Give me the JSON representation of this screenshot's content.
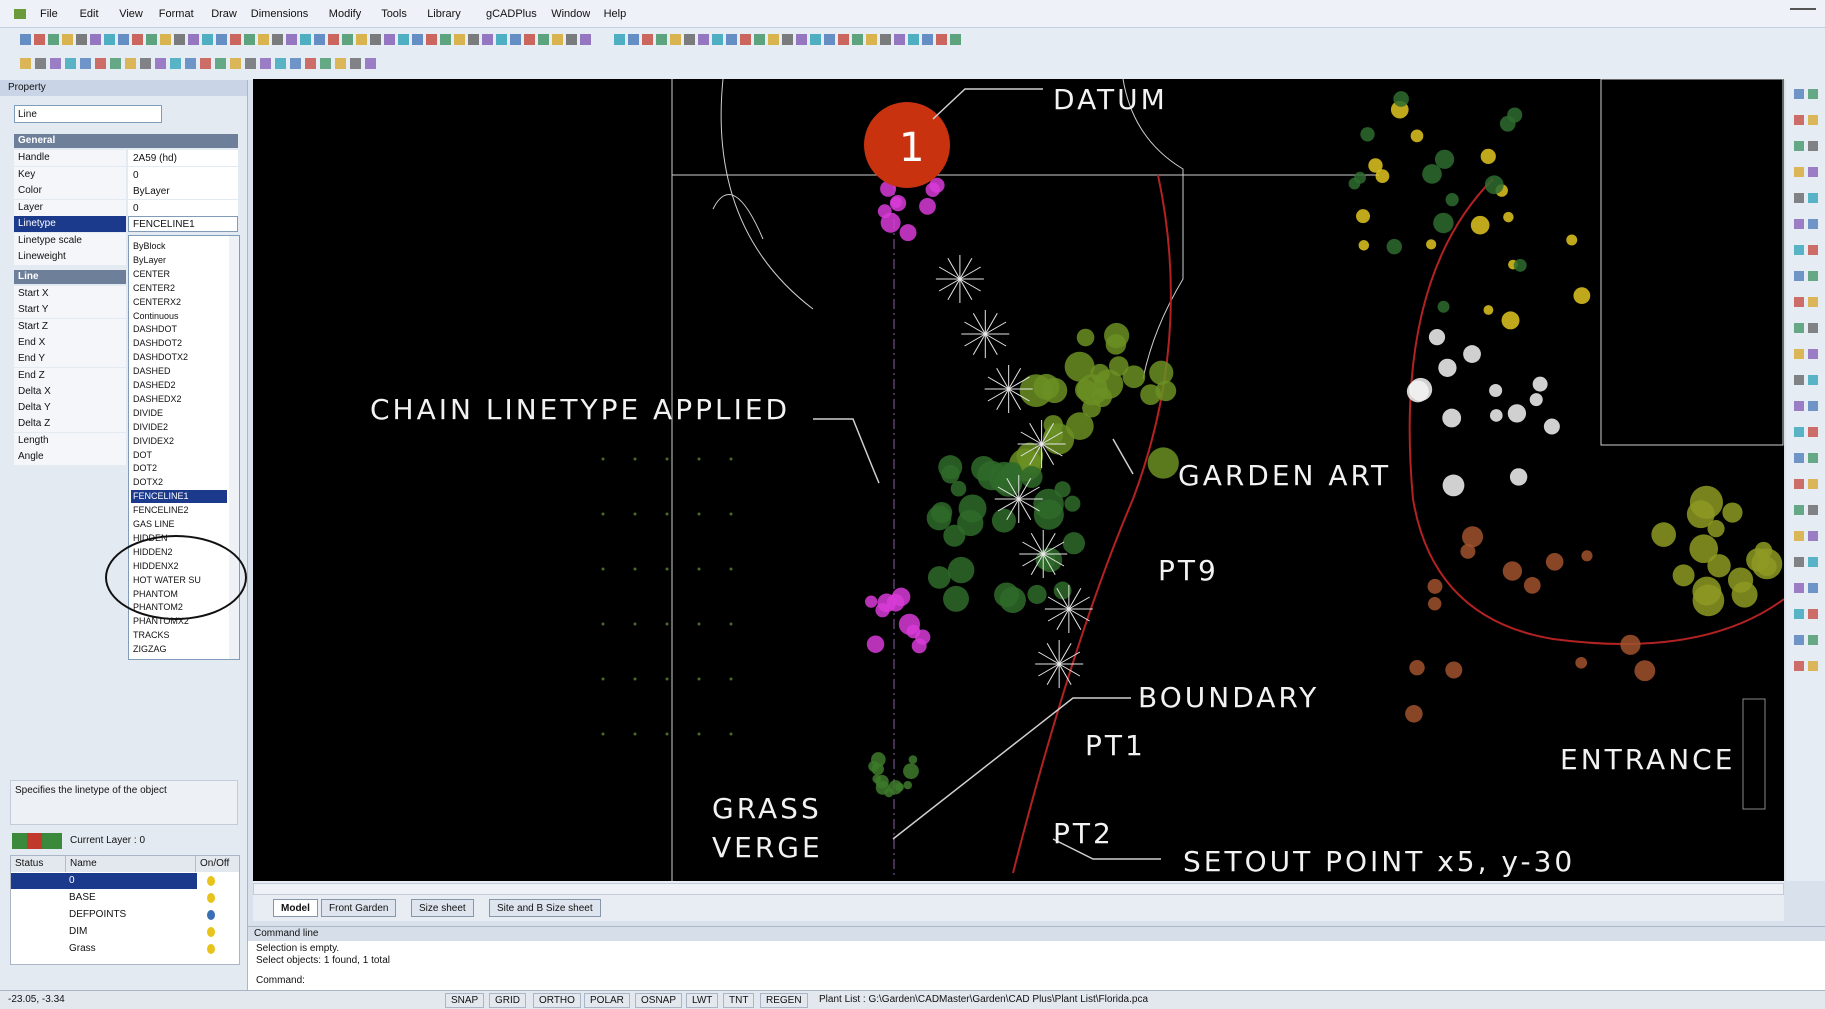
{
  "menu": [
    "File",
    "Edit",
    "View",
    "Format",
    "Draw",
    "Dimensions",
    "Modify",
    "Tools",
    "Library",
    "gCADPlus",
    "Window",
    "Help"
  ],
  "property_panel": {
    "title": "Property",
    "object_type": "Line",
    "general_header": "General",
    "general_rows": [
      {
        "label": "Handle",
        "value": "2A59 (hd)"
      },
      {
        "label": "Key",
        "value": "0"
      },
      {
        "label": "Color",
        "value": "ByLayer"
      },
      {
        "label": "Layer",
        "value": "0"
      },
      {
        "label": "Linetype",
        "value": "FENCELINE1"
      },
      {
        "label": "Linetype scale"
      },
      {
        "label": "Lineweight"
      }
    ],
    "line_header": "Line",
    "line_rows": [
      "Start X",
      "Start Y",
      "Start Z",
      "End X",
      "End Y",
      "End Z",
      "Delta X",
      "Delta Y",
      "Delta Z",
      "Length",
      "Angle"
    ],
    "linetype_options": [
      {
        "label": "ByBlock"
      },
      {
        "label": "ByLayer"
      },
      {
        "label": "CENTER"
      },
      {
        "label": "CENTER2"
      },
      {
        "label": "CENTERX2"
      },
      {
        "label": "Continuous"
      },
      {
        "label": "DASHDOT"
      },
      {
        "label": "DASHDOT2"
      },
      {
        "label": "DASHDOTX2"
      },
      {
        "label": "DASHED"
      },
      {
        "label": "DASHED2"
      },
      {
        "label": "DASHEDX2"
      },
      {
        "label": "DIVIDE"
      },
      {
        "label": "DIVIDE2"
      },
      {
        "label": "DIVIDEX2"
      },
      {
        "label": "DOT"
      },
      {
        "label": "DOT2"
      },
      {
        "label": "DOTX2"
      },
      {
        "label": "FENCELINE1",
        "selected": true
      },
      {
        "label": "FENCELINE2"
      },
      {
        "label": "GAS LINE"
      },
      {
        "label": "HIDDEN"
      },
      {
        "label": "HIDDEN2"
      },
      {
        "label": "HIDDENX2"
      },
      {
        "label": "HOT WATER SU"
      },
      {
        "label": "PHANTOM"
      },
      {
        "label": "PHANTOM2"
      },
      {
        "label": "PHANTOMX2"
      },
      {
        "label": "TRACKS"
      },
      {
        "label": "ZIGZAG"
      }
    ],
    "description": "Specifies the linetype of the object"
  },
  "layer_panel": {
    "current_layer": "Current Layer : 0",
    "columns": [
      "Status",
      "Name",
      "On/Off"
    ],
    "rows": [
      "0",
      "BASE",
      "DEFPOINTS",
      "DIM",
      "Grass"
    ]
  },
  "drawing": {
    "marker": "1",
    "labels": {
      "datum": "DATUM",
      "chain": "CHAIN LINETYPE APPLIED",
      "garden_art": "GARDEN ART",
      "pt9": "PT9",
      "boundary": "BOUNDARY",
      "pt1": "PT1",
      "entrance": "ENTRANCE",
      "grass": "GRASS",
      "verge": "VERGE",
      "pt2": "PT2",
      "setout": "SETOUT POINT x5, y-30"
    }
  },
  "tabs": [
    "Model",
    "Front Garden",
    "Size sheet",
    "Site and B Size sheet"
  ],
  "command": {
    "title": "Command line",
    "lines": [
      "Selection is empty.",
      "Select objects: 1 found, 1 total"
    ],
    "prompt": "Command:"
  },
  "status": {
    "coords": "-23.05, -3.34",
    "buttons": [
      "SNAP",
      "GRID",
      "ORTHO",
      "POLAR",
      "OSNAP",
      "LWT",
      "TNT",
      "REGEN"
    ],
    "path": "Plant List : G:\\Garden\\CADMaster\\Garden\\CAD Plus\\Plant List\\Florida.pca"
  }
}
